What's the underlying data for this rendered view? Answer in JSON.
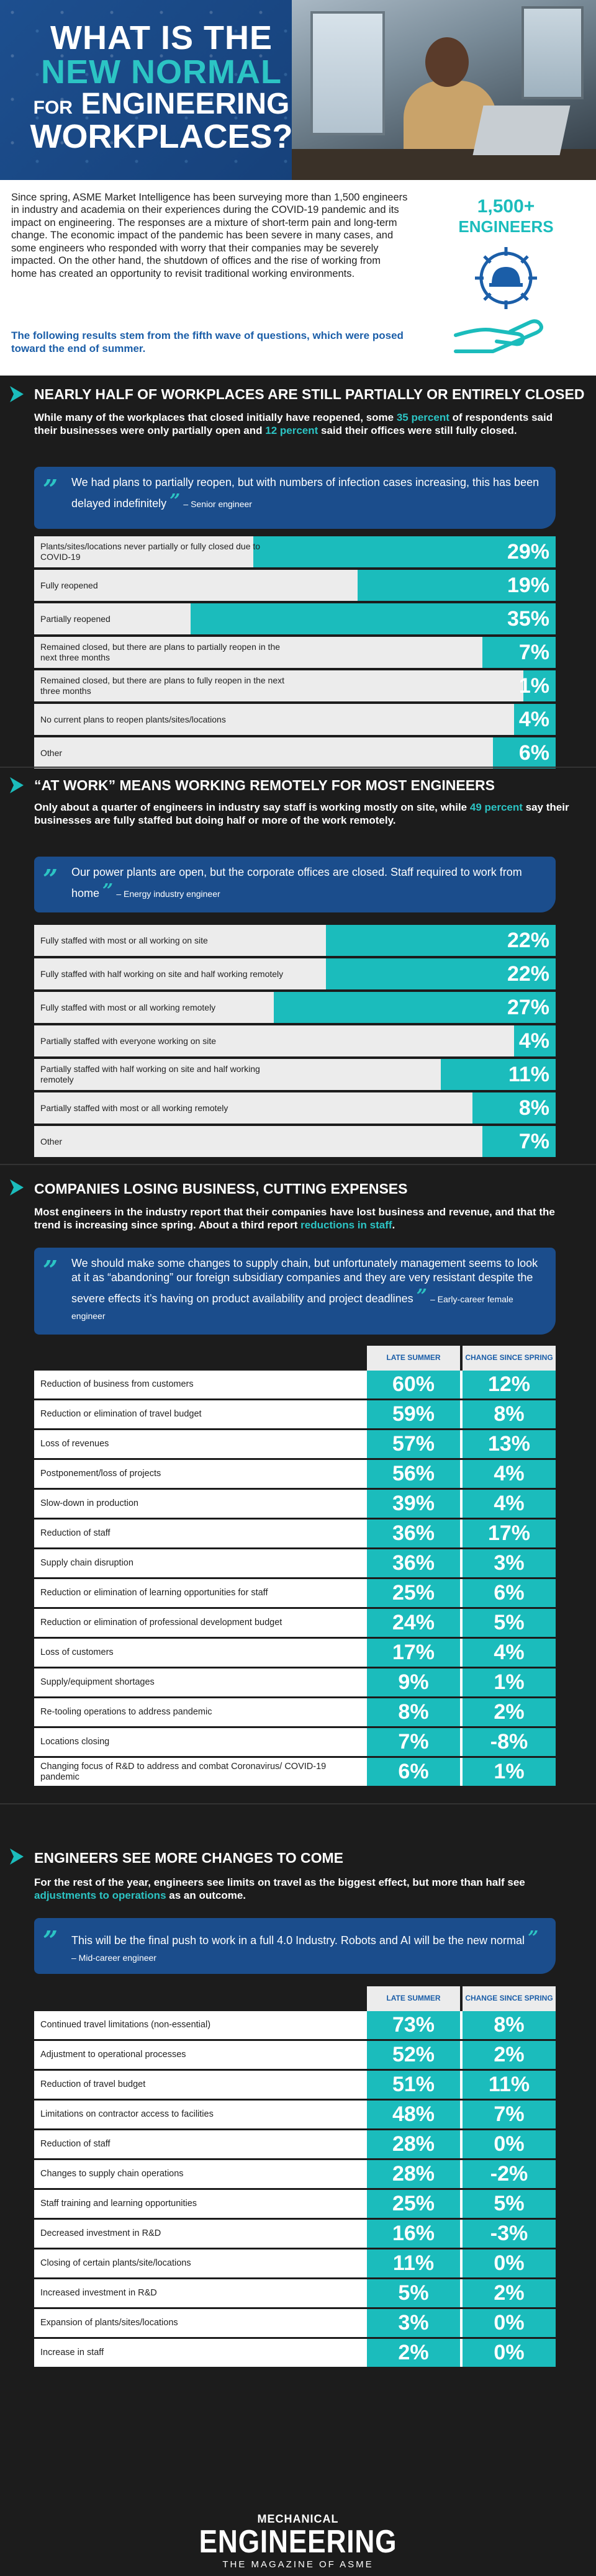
{
  "hero": {
    "title_line1": "WHAT IS THE",
    "title_line2": "NEW NORMAL",
    "title_line3_small": "FOR",
    "title_line3": "ENGINEERING",
    "title_line4": "WORKPLACES?"
  },
  "intro": {
    "body": "Since spring, ASME Market Intelligence has been surveying more than 1,500 engineers in industry and academia on their experiences during the COVID-19 pandemic and its impact on engineering. The responses are a mixture of short-term pain and long-term change. The economic impact of the pandemic has been severe in many cases, and some engineers who responded with worry that their companies may be severely impacted. On the other hand, the shutdown of offices and the rise of working from home has created an opportunity to revisit traditional working environments.",
    "note": "The following results stem from the fifth wave of questions, which were posed toward the end of summer.",
    "stat_number": "1,500+",
    "stat_label": "ENGINEERS"
  },
  "section1": {
    "title": "NEARLY HALF OF WORKPLACES ARE STILL PARTIALLY OR ENTIRELY CLOSED",
    "intro_a": "While many of the workplaces that closed initially have reopened, some ",
    "intro_hl1": "35 percent",
    "intro_b": " of respondents said their businesses were only partially open and ",
    "intro_hl2": "12 percent",
    "intro_c": " said their offices were still fully closed.",
    "quote": "We had plans to partially reopen, but with numbers of infection cases increasing, this has been delayed indefinitely",
    "quote_attr": "– Senior engineer",
    "rows": [
      {
        "label": "Plants/sites/locations never partially or fully closed due to COVID-19",
        "value": "29%",
        "pct": 29
      },
      {
        "label": "Fully reopened",
        "value": "19%",
        "pct": 19
      },
      {
        "label": "Partially reopened",
        "value": "35%",
        "pct": 35
      },
      {
        "label": "Remained closed, but there are plans to partially reopen in the next three months",
        "value": "7%",
        "pct": 7
      },
      {
        "label": "Remained closed, but there are plans to fully reopen in the next three months",
        "value": "1%",
        "pct": 1
      },
      {
        "label": "No current plans to reopen plants/sites/locations",
        "value": "4%",
        "pct": 4
      },
      {
        "label": "Other",
        "value": "6%",
        "pct": 6
      }
    ]
  },
  "section2": {
    "title": "“AT WORK” MEANS WORKING REMOTELY FOR MOST ENGINEERS",
    "intro_a": "Only about a quarter of engineers in industry say staff is working mostly on site, while ",
    "intro_hl1": "49 percent",
    "intro_b": " say their businesses are fully staffed but doing half or more of the work remotely.",
    "quote": "Our power plants are open, but the corporate offices are closed. Staff required to work from home",
    "quote_attr": "– Energy industry engineer",
    "rows": [
      {
        "label": "Fully staffed with most or all working on site",
        "value": "22%",
        "pct": 22
      },
      {
        "label": "Fully staffed with half working on site and half working remotely",
        "value": "22%",
        "pct": 22
      },
      {
        "label": "Fully staffed with most or all working remotely",
        "value": "27%",
        "pct": 27
      },
      {
        "label": "Partially staffed with everyone working on site",
        "value": "4%",
        "pct": 4
      },
      {
        "label": "Partially staffed with half working on site and half working remotely",
        "value": "11%",
        "pct": 11
      },
      {
        "label": "Partially staffed with most or all working remotely",
        "value": "8%",
        "pct": 8
      },
      {
        "label": "Other",
        "value": "7%",
        "pct": 7
      }
    ]
  },
  "section3": {
    "title": "COMPANIES LOSING BUSINESS, CUTTING EXPENSES",
    "intro_a": "Most engineers in the industry report that their companies have lost business and revenue, and that the trend is increasing since spring. About a third report ",
    "intro_hl1": "reductions in staff",
    "intro_b": ".",
    "quote": "We should make some changes to supply chain, but unfortunately management seems to look at it as “abandoning” our foreign subsidiary companies and they are very resistant despite the severe effects it’s having on product availability and project deadlines",
    "quote_attr": "– Early-career female engineer",
    "col_a": "LATE SUMMER",
    "col_b": "CHANGE SINCE SPRING",
    "rows": [
      {
        "label": "Reduction of business from customers",
        "a": "60%",
        "b": "12%"
      },
      {
        "label": "Reduction or elimination of travel budget",
        "a": "59%",
        "b": "8%"
      },
      {
        "label": "Loss of revenues",
        "a": "57%",
        "b": "13%"
      },
      {
        "label": "Postponement/loss of projects",
        "a": "56%",
        "b": "4%"
      },
      {
        "label": "Slow-down in production",
        "a": "39%",
        "b": "4%"
      },
      {
        "label": "Reduction of staff",
        "a": "36%",
        "b": "17%"
      },
      {
        "label": "Supply chain disruption",
        "a": "36%",
        "b": "3%"
      },
      {
        "label": "Reduction or elimination of learning opportunities for staff",
        "a": "25%",
        "b": "6%"
      },
      {
        "label": "Reduction or elimination of professional development budget",
        "a": "24%",
        "b": "5%"
      },
      {
        "label": "Loss of customers",
        "a": "17%",
        "b": "4%"
      },
      {
        "label": "Supply/equipment shortages",
        "a": "9%",
        "b": "1%"
      },
      {
        "label": "Re-tooling operations to address pandemic",
        "a": "8%",
        "b": "2%"
      },
      {
        "label": "Locations closing",
        "a": "7%",
        "b": "-8%"
      },
      {
        "label": "Changing focus of R&D to address and combat Coronavirus/ COVID-19 pandemic",
        "a": "6%",
        "b": "1%"
      }
    ]
  },
  "section4": {
    "title": "ENGINEERS SEE MORE CHANGES TO COME",
    "intro_a": "For the rest of the year, engineers see limits on travel as the biggest effect, but more than half see ",
    "intro_hl1": "adjustments to operations",
    "intro_b": " as an outcome.",
    "quote": "This will be the final push to work in a full 4.0 Industry. Robots and AI will be the new normal",
    "quote_attr": "– Mid-career engineer",
    "col_a": "LATE SUMMER",
    "col_b": "CHANGE SINCE SPRING",
    "rows": [
      {
        "label": "Continued travel limitations (non-essential)",
        "a": "73%",
        "b": "8%"
      },
      {
        "label": "Adjustment to operational processes",
        "a": "52%",
        "b": "2%"
      },
      {
        "label": "Reduction of travel budget",
        "a": "51%",
        "b": "11%"
      },
      {
        "label": "Limitations on contractor access to facilities",
        "a": "48%",
        "b": "7%"
      },
      {
        "label": "Reduction of staff",
        "a": "28%",
        "b": "0%"
      },
      {
        "label": "Changes to supply chain operations",
        "a": "28%",
        "b": "-2%"
      },
      {
        "label": "Staff training and learning opportunities",
        "a": "25%",
        "b": "5%"
      },
      {
        "label": "Decreased investment in R&D",
        "a": "16%",
        "b": "-3%"
      },
      {
        "label": "Closing of certain plants/site/locations",
        "a": "11%",
        "b": "0%"
      },
      {
        "label": "Increased investment in R&D",
        "a": "5%",
        "b": "2%"
      },
      {
        "label": "Expansion of plants/sites/locations",
        "a": "3%",
        "b": "0%"
      },
      {
        "label": "Increase in staff",
        "a": "2%",
        "b": "0%"
      }
    ]
  },
  "footer": {
    "logo_small": "MECHANICAL",
    "logo_big": "ENGINEERING",
    "logo_tag": "THE MAGAZINE OF ASME"
  },
  "colors": {
    "teal": "#1bbcbc",
    "blue": "#1b4d8c",
    "dark": "#1c1c1c"
  }
}
